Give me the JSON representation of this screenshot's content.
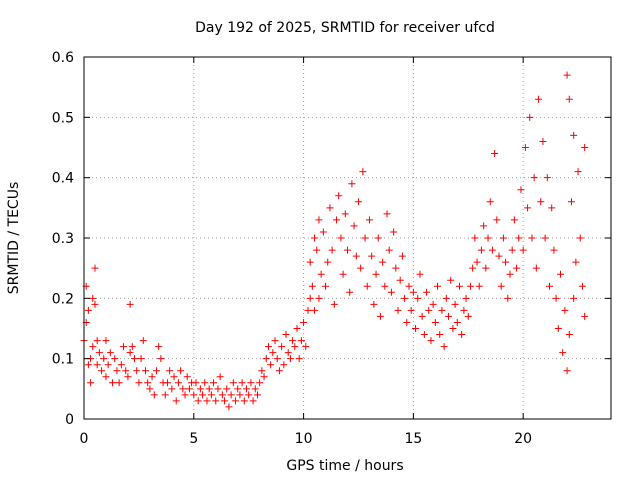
{
  "chart_data": {
    "type": "scatter",
    "title": "Day 192 of 2025, SRMTID for receiver ufcd",
    "xlabel": "GPS time / hours",
    "ylabel": "SRMTID / TECUs",
    "xlim": [
      0,
      24
    ],
    "ylim": [
      0,
      0.6
    ],
    "xticks": [
      0,
      5,
      10,
      15,
      20
    ],
    "xtick_labels": [
      "0",
      "5",
      "10",
      "15",
      "20"
    ],
    "yticks": [
      0,
      0.1,
      0.2,
      0.3,
      0.4,
      0.5,
      0.6
    ],
    "ytick_labels": [
      "0",
      "0.1",
      "0.2",
      "0.3",
      "0.4",
      "0.5",
      "0.6"
    ],
    "grid": true,
    "marker": "+",
    "color": "#ff0000",
    "series": [
      {
        "name": "SRMTID",
        "points": [
          [
            0.0,
            0.13
          ],
          [
            0.1,
            0.16
          ],
          [
            0.1,
            0.22
          ],
          [
            0.2,
            0.09
          ],
          [
            0.2,
            0.18
          ],
          [
            0.3,
            0.1
          ],
          [
            0.3,
            0.06
          ],
          [
            0.4,
            0.2
          ],
          [
            0.4,
            0.12
          ],
          [
            0.5,
            0.25
          ],
          [
            0.5,
            0.19
          ],
          [
            0.6,
            0.13
          ],
          [
            0.6,
            0.09
          ],
          [
            0.7,
            0.11
          ],
          [
            0.8,
            0.08
          ],
          [
            0.9,
            0.1
          ],
          [
            1.0,
            0.13
          ],
          [
            1.0,
            0.07
          ],
          [
            1.1,
            0.09
          ],
          [
            1.2,
            0.11
          ],
          [
            1.3,
            0.06
          ],
          [
            1.4,
            0.1
          ],
          [
            1.5,
            0.08
          ],
          [
            1.6,
            0.06
          ],
          [
            1.7,
            0.09
          ],
          [
            1.8,
            0.12
          ],
          [
            1.9,
            0.08
          ],
          [
            2.0,
            0.07
          ],
          [
            2.1,
            0.11
          ],
          [
            2.1,
            0.19
          ],
          [
            2.2,
            0.12
          ],
          [
            2.3,
            0.1
          ],
          [
            2.4,
            0.08
          ],
          [
            2.5,
            0.06
          ],
          [
            2.6,
            0.1
          ],
          [
            2.7,
            0.13
          ],
          [
            2.8,
            0.08
          ],
          [
            2.9,
            0.06
          ],
          [
            3.0,
            0.05
          ],
          [
            3.1,
            0.07
          ],
          [
            3.2,
            0.04
          ],
          [
            3.3,
            0.08
          ],
          [
            3.4,
            0.12
          ],
          [
            3.5,
            0.1
          ],
          [
            3.6,
            0.06
          ],
          [
            3.7,
            0.04
          ],
          [
            3.8,
            0.06
          ],
          [
            3.9,
            0.08
          ],
          [
            4.0,
            0.05
          ],
          [
            4.1,
            0.07
          ],
          [
            4.2,
            0.03
          ],
          [
            4.3,
            0.06
          ],
          [
            4.4,
            0.08
          ],
          [
            4.5,
            0.05
          ],
          [
            4.6,
            0.04
          ],
          [
            4.7,
            0.07
          ],
          [
            4.8,
            0.05
          ],
          [
            4.9,
            0.06
          ],
          [
            5.0,
            0.04
          ],
          [
            5.1,
            0.06
          ],
          [
            5.2,
            0.03
          ],
          [
            5.3,
            0.05
          ],
          [
            5.4,
            0.04
          ],
          [
            5.5,
            0.06
          ],
          [
            5.6,
            0.03
          ],
          [
            5.7,
            0.05
          ],
          [
            5.8,
            0.04
          ],
          [
            5.9,
            0.06
          ],
          [
            6.0,
            0.03
          ],
          [
            6.1,
            0.05
          ],
          [
            6.2,
            0.07
          ],
          [
            6.3,
            0.04
          ],
          [
            6.4,
            0.03
          ],
          [
            6.5,
            0.05
          ],
          [
            6.6,
            0.02
          ],
          [
            6.7,
            0.04
          ],
          [
            6.8,
            0.06
          ],
          [
            6.9,
            0.03
          ],
          [
            7.0,
            0.05
          ],
          [
            7.1,
            0.04
          ],
          [
            7.2,
            0.06
          ],
          [
            7.3,
            0.03
          ],
          [
            7.4,
            0.05
          ],
          [
            7.5,
            0.04
          ],
          [
            7.6,
            0.06
          ],
          [
            7.7,
            0.03
          ],
          [
            7.8,
            0.05
          ],
          [
            7.9,
            0.04
          ],
          [
            8.0,
            0.06
          ],
          [
            8.1,
            0.08
          ],
          [
            8.2,
            0.07
          ],
          [
            8.3,
            0.1
          ],
          [
            8.4,
            0.12
          ],
          [
            8.5,
            0.09
          ],
          [
            8.6,
            0.11
          ],
          [
            8.7,
            0.13
          ],
          [
            8.8,
            0.1
          ],
          [
            8.9,
            0.08
          ],
          [
            9.0,
            0.12
          ],
          [
            9.1,
            0.09
          ],
          [
            9.2,
            0.14
          ],
          [
            9.3,
            0.11
          ],
          [
            9.4,
            0.1
          ],
          [
            9.5,
            0.13
          ],
          [
            9.6,
            0.12
          ],
          [
            9.7,
            0.15
          ],
          [
            9.8,
            0.1
          ],
          [
            9.9,
            0.13
          ],
          [
            10.0,
            0.16
          ],
          [
            10.1,
            0.12
          ],
          [
            10.2,
            0.18
          ],
          [
            10.3,
            0.2
          ],
          [
            10.3,
            0.26
          ],
          [
            10.4,
            0.22
          ],
          [
            10.5,
            0.3
          ],
          [
            10.5,
            0.18
          ],
          [
            10.6,
            0.28
          ],
          [
            10.7,
            0.2
          ],
          [
            10.7,
            0.33
          ],
          [
            10.8,
            0.24
          ],
          [
            10.9,
            0.31
          ],
          [
            11.0,
            0.22
          ],
          [
            11.1,
            0.26
          ],
          [
            11.2,
            0.35
          ],
          [
            11.3,
            0.28
          ],
          [
            11.4,
            0.19
          ],
          [
            11.5,
            0.33
          ],
          [
            11.6,
            0.37
          ],
          [
            11.7,
            0.3
          ],
          [
            11.8,
            0.24
          ],
          [
            11.9,
            0.34
          ],
          [
            12.0,
            0.28
          ],
          [
            12.1,
            0.21
          ],
          [
            12.2,
            0.39
          ],
          [
            12.3,
            0.32
          ],
          [
            12.4,
            0.27
          ],
          [
            12.5,
            0.36
          ],
          [
            12.6,
            0.25
          ],
          [
            12.7,
            0.41
          ],
          [
            12.8,
            0.3
          ],
          [
            12.9,
            0.22
          ],
          [
            13.0,
            0.33
          ],
          [
            13.1,
            0.27
          ],
          [
            13.2,
            0.19
          ],
          [
            13.3,
            0.24
          ],
          [
            13.4,
            0.3
          ],
          [
            13.5,
            0.17
          ],
          [
            13.6,
            0.26
          ],
          [
            13.7,
            0.22
          ],
          [
            13.8,
            0.34
          ],
          [
            13.9,
            0.28
          ],
          [
            14.0,
            0.21
          ],
          [
            14.1,
            0.31
          ],
          [
            14.2,
            0.25
          ],
          [
            14.3,
            0.18
          ],
          [
            14.4,
            0.23
          ],
          [
            14.5,
            0.27
          ],
          [
            14.6,
            0.2
          ],
          [
            14.7,
            0.16
          ],
          [
            14.8,
            0.22
          ],
          [
            14.9,
            0.18
          ],
          [
            15.0,
            0.21
          ],
          [
            15.1,
            0.15
          ],
          [
            15.2,
            0.2
          ],
          [
            15.3,
            0.24
          ],
          [
            15.4,
            0.17
          ],
          [
            15.5,
            0.14
          ],
          [
            15.6,
            0.21
          ],
          [
            15.7,
            0.18
          ],
          [
            15.8,
            0.13
          ],
          [
            15.9,
            0.19
          ],
          [
            16.0,
            0.16
          ],
          [
            16.1,
            0.22
          ],
          [
            16.2,
            0.14
          ],
          [
            16.3,
            0.18
          ],
          [
            16.4,
            0.12
          ],
          [
            16.5,
            0.2
          ],
          [
            16.6,
            0.17
          ],
          [
            16.7,
            0.23
          ],
          [
            16.8,
            0.15
          ],
          [
            16.9,
            0.19
          ],
          [
            17.0,
            0.16
          ],
          [
            17.1,
            0.22
          ],
          [
            17.2,
            0.14
          ],
          [
            17.3,
            0.18
          ],
          [
            17.4,
            0.2
          ],
          [
            17.5,
            0.17
          ],
          [
            17.6,
            0.22
          ],
          [
            17.7,
            0.25
          ],
          [
            17.8,
            0.3
          ],
          [
            17.9,
            0.26
          ],
          [
            18.0,
            0.22
          ],
          [
            18.1,
            0.28
          ],
          [
            18.2,
            0.32
          ],
          [
            18.3,
            0.25
          ],
          [
            18.4,
            0.3
          ],
          [
            18.5,
            0.36
          ],
          [
            18.6,
            0.28
          ],
          [
            18.7,
            0.44
          ],
          [
            18.8,
            0.33
          ],
          [
            18.9,
            0.27
          ],
          [
            19.0,
            0.22
          ],
          [
            19.1,
            0.3
          ],
          [
            19.2,
            0.26
          ],
          [
            19.3,
            0.2
          ],
          [
            19.4,
            0.24
          ],
          [
            19.5,
            0.28
          ],
          [
            19.6,
            0.33
          ],
          [
            19.7,
            0.25
          ],
          [
            19.8,
            0.3
          ],
          [
            19.9,
            0.38
          ],
          [
            20.0,
            0.28
          ],
          [
            20.1,
            0.45
          ],
          [
            20.2,
            0.35
          ],
          [
            20.3,
            0.5
          ],
          [
            20.4,
            0.3
          ],
          [
            20.5,
            0.4
          ],
          [
            20.6,
            0.25
          ],
          [
            20.7,
            0.53
          ],
          [
            20.8,
            0.36
          ],
          [
            20.9,
            0.46
          ],
          [
            21.0,
            0.3
          ],
          [
            21.1,
            0.4
          ],
          [
            21.2,
            0.22
          ],
          [
            21.3,
            0.35
          ],
          [
            21.4,
            0.28
          ],
          [
            21.5,
            0.2
          ],
          [
            21.6,
            0.15
          ],
          [
            21.7,
            0.24
          ],
          [
            21.8,
            0.11
          ],
          [
            21.9,
            0.18
          ],
          [
            22.0,
            0.08
          ],
          [
            22.0,
            0.57
          ],
          [
            22.1,
            0.53
          ],
          [
            22.1,
            0.14
          ],
          [
            22.2,
            0.36
          ],
          [
            22.3,
            0.2
          ],
          [
            22.3,
            0.47
          ],
          [
            22.4,
            0.26
          ],
          [
            22.5,
            0.41
          ],
          [
            22.6,
            0.3
          ],
          [
            22.7,
            0.22
          ],
          [
            22.8,
            0.45
          ],
          [
            22.8,
            0.17
          ]
        ]
      }
    ]
  }
}
